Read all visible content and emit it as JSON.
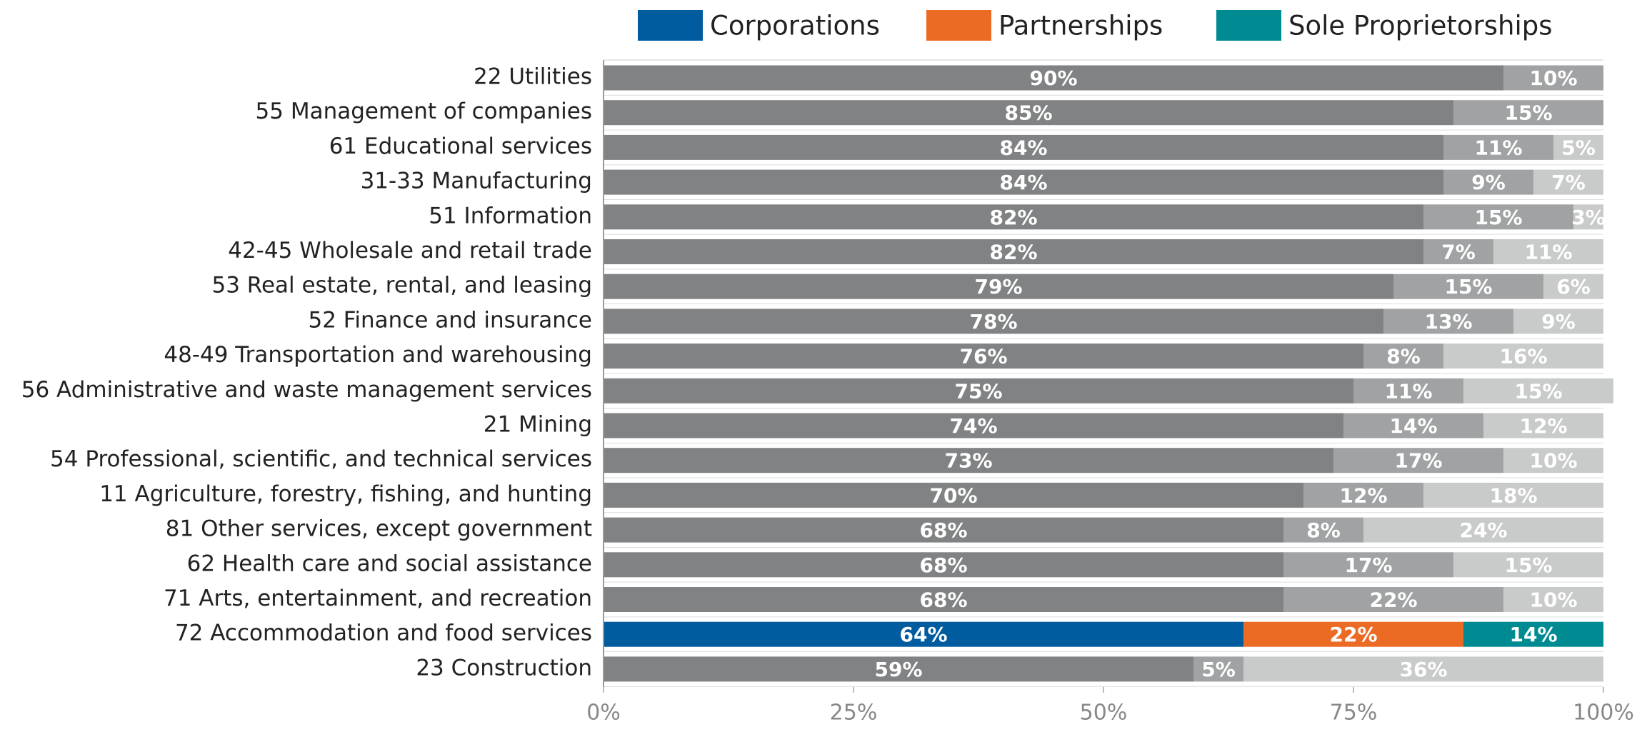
{
  "chart_data": {
    "type": "stacked_barh",
    "categories": [
      "22 Utilities",
      "55 Management of companies",
      "61 Educational services",
      "31-33 Manufacturing",
      "51 Information",
      "42-45 Wholesale and retail trade",
      "53 Real estate, rental, and leasing",
      "52 Finance and insurance",
      "48-49 Transportation and warehousing",
      "56 Administrative and waste management services",
      "21 Mining",
      "54 Professional, scientific, and technical services",
      "11 Agriculture, forestry, fishing, and hunting",
      "81 Other services, except government",
      "62 Health care and social assistance",
      "71 Arts, entertainment, and recreation",
      "72 Accommodation and food services",
      "23 Construction"
    ],
    "series": [
      {
        "name": "Corporations",
        "color": "#005b9f",
        "muted_color": "#808283",
        "values": [
          90,
          85,
          84,
          84,
          82,
          82,
          79,
          78,
          76,
          75,
          74,
          73,
          70,
          68,
          68,
          68,
          64,
          59
        ],
        "value_labels": [
          "90%",
          "85%",
          "84%",
          "84%",
          "82%",
          "82%",
          "79%",
          "78%",
          "76%",
          "75%",
          "74%",
          "73%",
          "70%",
          "68%",
          "68%",
          "68%",
          "64%",
          "59%"
        ]
      },
      {
        "name": "Partnerships",
        "color": "#ec6b24",
        "muted_color": "#a0a2a3",
        "values": [
          10,
          15,
          11,
          9,
          15,
          7,
          15,
          13,
          8,
          11,
          14,
          17,
          12,
          8,
          17,
          22,
          22,
          5
        ],
        "value_labels": [
          "10%",
          "15%",
          "11%",
          "9%",
          "15%",
          "7%",
          "15%",
          "13%",
          "8%",
          "11%",
          "14%",
          "17%",
          "12%",
          "8%",
          "17%",
          "22%",
          "22%",
          "5%"
        ]
      },
      {
        "name": "Sole Proprietorships",
        "color": "#008b93",
        "muted_color": "#c9caca",
        "values": [
          null,
          null,
          5,
          7,
          3,
          11,
          6,
          9,
          16,
          15,
          12,
          10,
          18,
          24,
          15,
          10,
          14,
          36
        ],
        "value_labels": [
          null,
          null,
          "5%",
          "7%",
          "3%",
          "11%",
          "6%",
          "9%",
          "16%",
          "15%",
          "12%",
          "10%",
          "18%",
          "24%",
          "15%",
          "10%",
          "14%",
          "36%"
        ]
      }
    ],
    "highlight_index": 16,
    "xlim": [
      0,
      100
    ],
    "xticks": [
      {
        "value": 0,
        "label": "0%"
      },
      {
        "value": 25,
        "label": "25%"
      },
      {
        "value": 50,
        "label": "50%"
      },
      {
        "value": 75,
        "label": "75%"
      },
      {
        "value": 100,
        "label": "100%"
      }
    ]
  }
}
